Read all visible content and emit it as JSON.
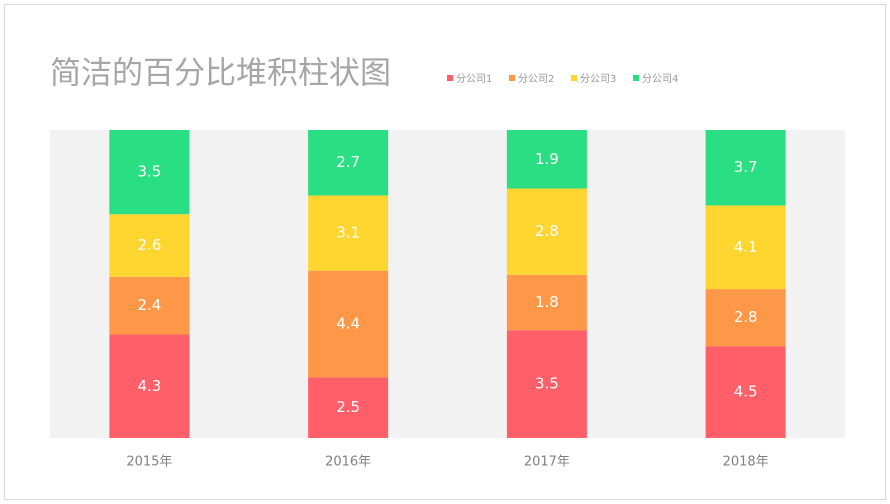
{
  "chart_data": {
    "type": "bar",
    "stacking": "percent",
    "title": "简洁的百分比堆积柱状图",
    "categories": [
      "2015年",
      "2016年",
      "2017年",
      "2018年"
    ],
    "series": [
      {
        "name": "分公司1",
        "color": "#fe5f69",
        "values": [
          4.3,
          2.5,
          3.5,
          4.5
        ]
      },
      {
        "name": "分公司2",
        "color": "#ff9748",
        "values": [
          2.4,
          4.4,
          1.8,
          2.8
        ]
      },
      {
        "name": "分公司3",
        "color": "#ffd52f",
        "values": [
          2.6,
          3.1,
          2.8,
          4.1
        ]
      },
      {
        "name": "分公司4",
        "color": "#2ade84",
        "values": [
          3.5,
          2.7,
          1.9,
          3.7
        ]
      }
    ],
    "legend": "top"
  }
}
